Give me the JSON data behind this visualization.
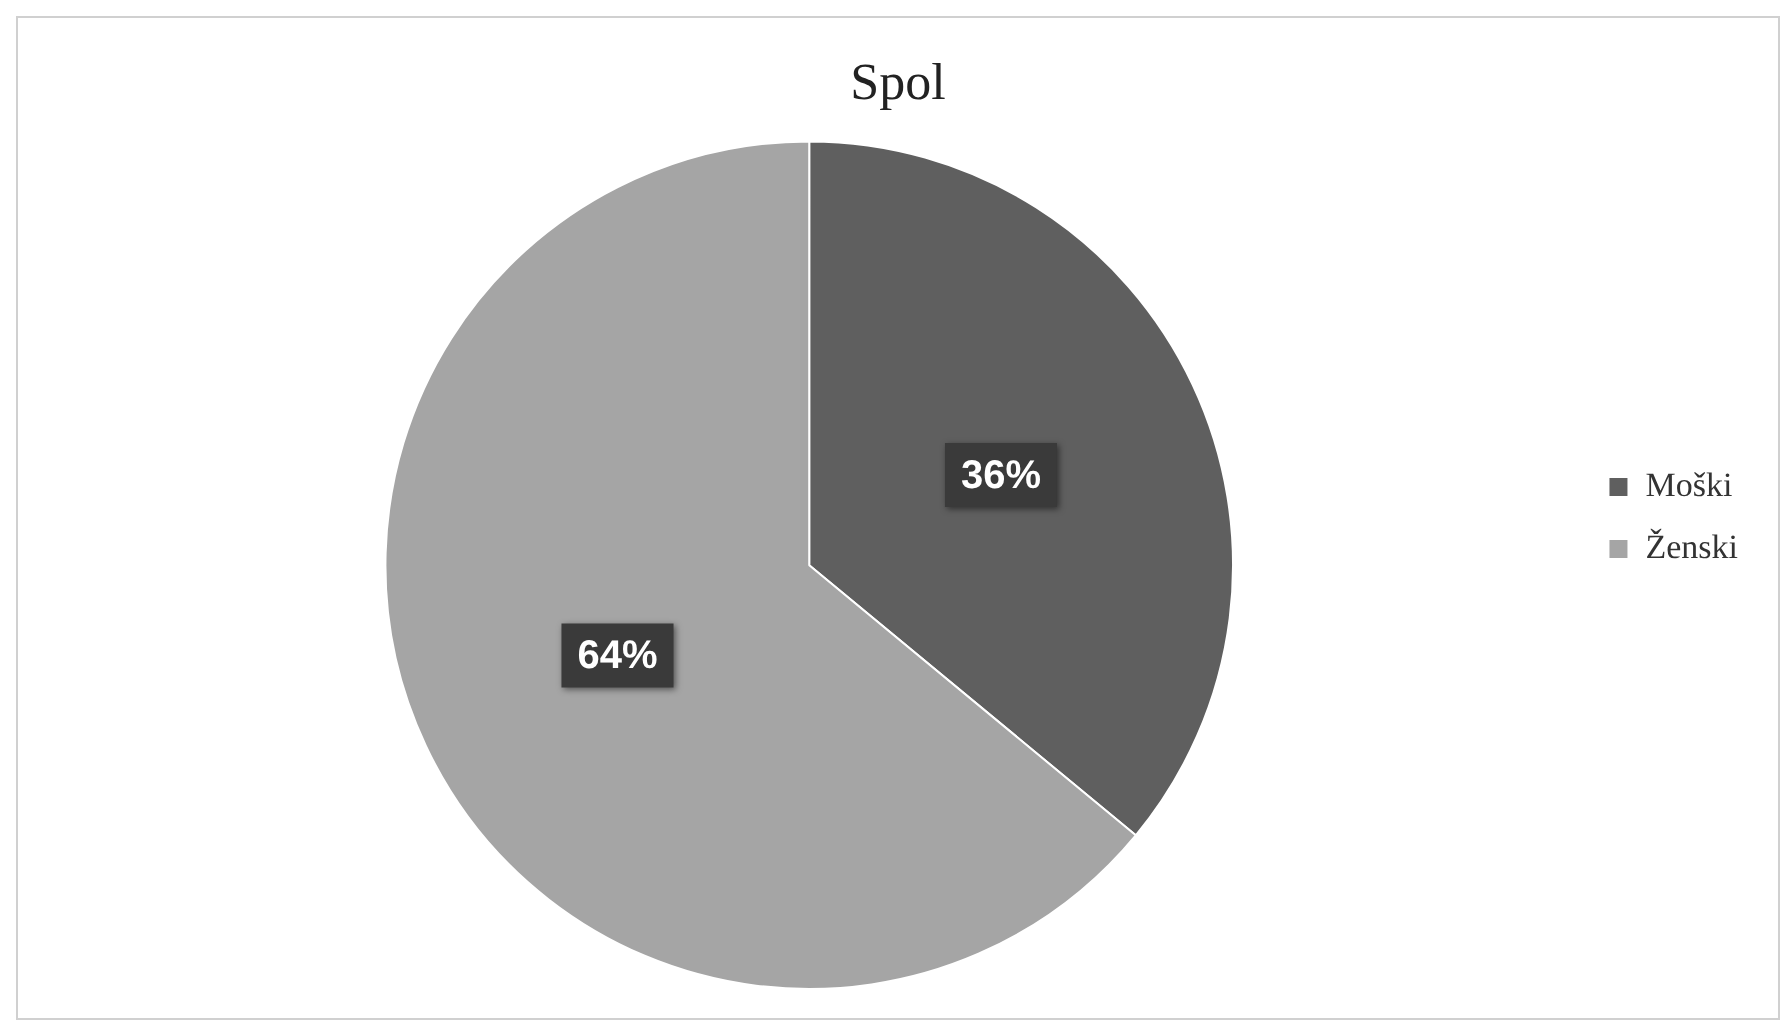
{
  "chart_data": {
    "type": "pie",
    "title": "Spol",
    "categories": [
      "Moški",
      "Ženski"
    ],
    "values": [
      36,
      64
    ],
    "colors": [
      "#5f5f5f",
      "#a5a5a5"
    ],
    "value_labels": [
      "36%",
      "64%"
    ],
    "legend": "right"
  }
}
